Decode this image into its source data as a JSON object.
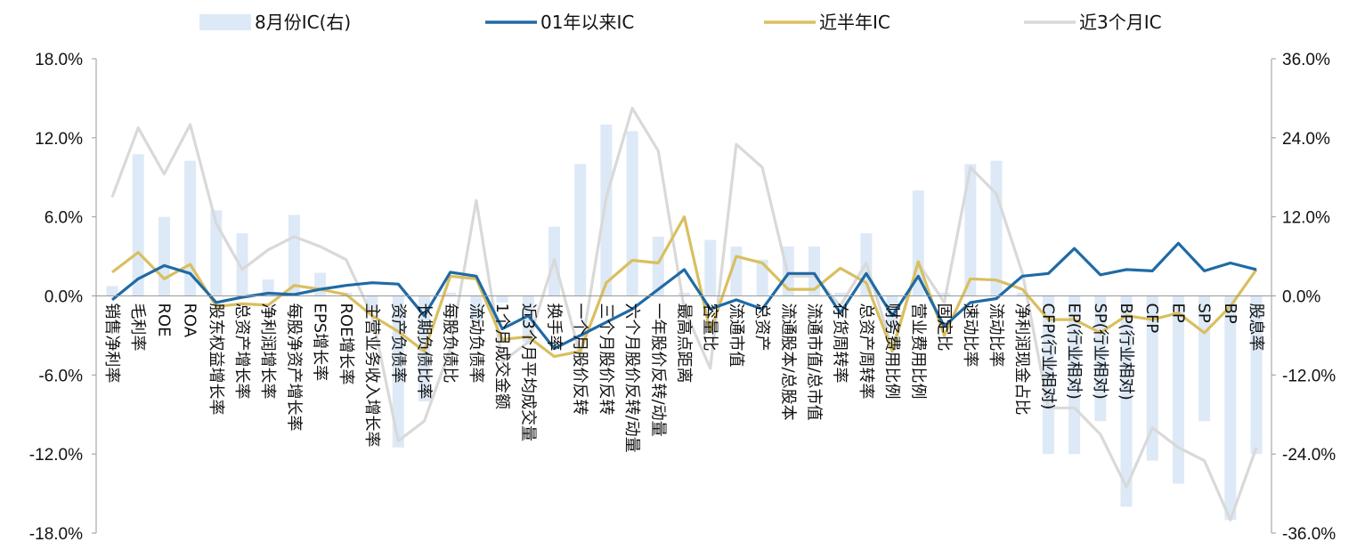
{
  "chart_data": {
    "type": "bar",
    "categories": [
      "销售净利率",
      "毛利率",
      "ROE",
      "ROA",
      "股东权益增长率",
      "总资产增长率",
      "净利润增长率",
      "每股净资产增长率",
      "EPS增长率",
      "ROE增长率",
      "主营业务收入增长率",
      "资产负债率",
      "长期负债比率",
      "每股负债比",
      "流动负债率",
      "1个月成交金额",
      "近3个月平均成交量",
      "换手率",
      "一个月股价反转",
      "三个月股价反转",
      "六个月股价反转/动量",
      "一年股价反转/动量",
      "最高点距离",
      "容量比",
      "流通市值",
      "总资产",
      "流通股本/总股本",
      "流通市值/总市值",
      "存货周转率",
      "总资产周转率",
      "财务费用比例",
      "营业费用比例",
      "固定比",
      "速动比率",
      "流动比率",
      "净利润现金占比",
      "CFP(行业相对)",
      "EP(行业相对)",
      "SP(行业相对)",
      "BP(行业相对)",
      "CFP",
      "EP",
      "SP",
      "BP",
      "股息率"
    ],
    "series": [
      {
        "name": "8月份IC(右)",
        "type": "bar",
        "axis": "right",
        "color": "#dde9f6",
        "values": [
          1.5,
          21.5,
          12,
          20.5,
          13,
          9.5,
          2.5,
          12.3,
          3.5,
          0.5,
          -2,
          -23,
          -16,
          0.5,
          -4,
          -1,
          -7,
          10.5,
          20,
          26,
          25,
          9,
          0.5,
          8.5,
          7.5,
          5.5,
          7.5,
          7.5,
          0.5,
          9.5,
          -5,
          16,
          0.5,
          20,
          20.5,
          0.5,
          -24,
          -24,
          -19,
          -32,
          -25,
          -28.5,
          -19,
          -34,
          -24
        ]
      },
      {
        "name": "01年以来IC",
        "type": "line",
        "axis": "left",
        "color": "#1f6aa5",
        "values": [
          -0.3,
          1.3,
          2.3,
          1.7,
          -0.5,
          -0.1,
          0.2,
          0.1,
          0.5,
          0.8,
          1.0,
          0.9,
          -1.5,
          1.8,
          1.5,
          -2.5,
          -1.5,
          -4.0,
          -3.0,
          -2.0,
          -1.0,
          0.5,
          2.0,
          -1.0,
          -0.3,
          -1.0,
          1.7,
          1.7,
          -1.3,
          1.7,
          -1.5,
          1.5,
          -2.3,
          -0.5,
          -0.2,
          1.5,
          1.7,
          3.6,
          1.6,
          2.0,
          1.9,
          4.0,
          1.9,
          2.5,
          2.0
        ]
      },
      {
        "name": "近半年IC",
        "type": "line",
        "axis": "left",
        "color": "#d9bf5f",
        "values": [
          1.8,
          3.3,
          1.3,
          2.4,
          -0.8,
          -0.6,
          -0.7,
          0.8,
          0.5,
          0.1,
          -1.5,
          -2.7,
          -4.2,
          1.5,
          1.3,
          -3.3,
          -3.1,
          -4.6,
          -4.2,
          1.0,
          2.7,
          2.5,
          6.0,
          -2.7,
          3.0,
          2.5,
          0.5,
          0.5,
          2.1,
          1.0,
          -4.2,
          2.6,
          -3.0,
          1.3,
          1.2,
          0.5,
          -1.8,
          -1.8,
          -2.8,
          -1.5,
          -1.8,
          -1.3,
          -2.8,
          -0.8,
          2.0
        ]
      },
      {
        "name": "近3个月IC",
        "type": "line",
        "axis": "right",
        "color": "#d9d9d9",
        "values": [
          15,
          25.5,
          18.5,
          26,
          11,
          4,
          7,
          9,
          7.5,
          5.5,
          -3,
          -22,
          -19,
          -8,
          14.5,
          -10,
          -7,
          5.5,
          -9,
          15,
          28.5,
          22,
          -2,
          -11,
          23,
          19.5,
          3,
          3,
          -1.5,
          5,
          -8,
          5,
          -1,
          19.5,
          15.5,
          3.5,
          -17,
          -17,
          -21,
          -29,
          -20,
          -23,
          -25,
          -34,
          -23
        ]
      }
    ],
    "y_left": {
      "min": -18,
      "max": 18,
      "ticks": [
        "-18.0%",
        "-12.0%",
        "-6.0%",
        "0.0%",
        "6.0%",
        "12.0%",
        "18.0%"
      ]
    },
    "y_right": {
      "min": -36,
      "max": 36,
      "ticks": [
        "-36.0%",
        "-24.0%",
        "-12.0%",
        "0.0%",
        "12.0%",
        "24.0%",
        "36.0%"
      ]
    },
    "legend_position": "top",
    "grid": false
  }
}
